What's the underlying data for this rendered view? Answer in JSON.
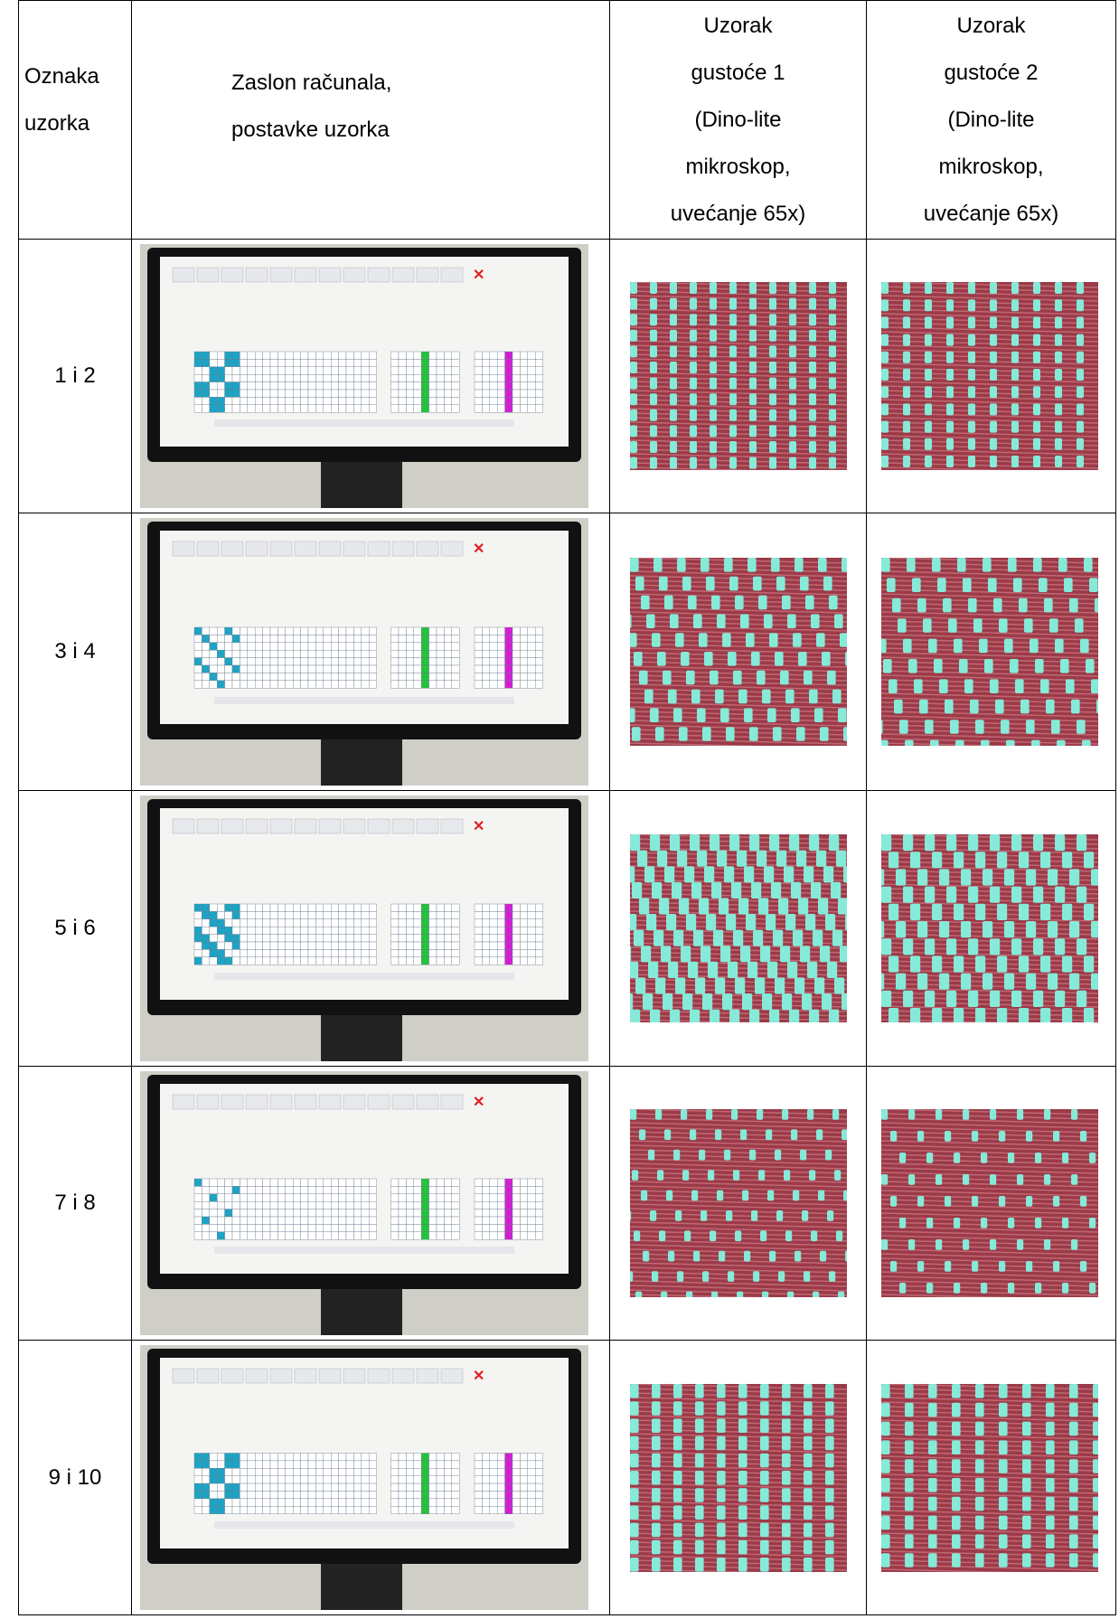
{
  "table": {
    "header": [
      "Oznaka uzorka",
      "Zaslon računala, postavke uzorka",
      [
        "Uzorak",
        "gustoće 1",
        "(Dino-lite",
        "mikroskop,",
        "uvećanje 65x)"
      ],
      [
        "Uzorak",
        "gustoće 2",
        "(Dino-lite",
        "mikroskop,",
        "uvećanje 65x)"
      ]
    ],
    "rows": [
      [
        "1 i 2"
      ],
      [
        "3 i 4"
      ],
      [
        "5 i 6"
      ],
      [
        "7 i 8"
      ],
      [
        "9 i 10"
      ]
    ]
  }
}
